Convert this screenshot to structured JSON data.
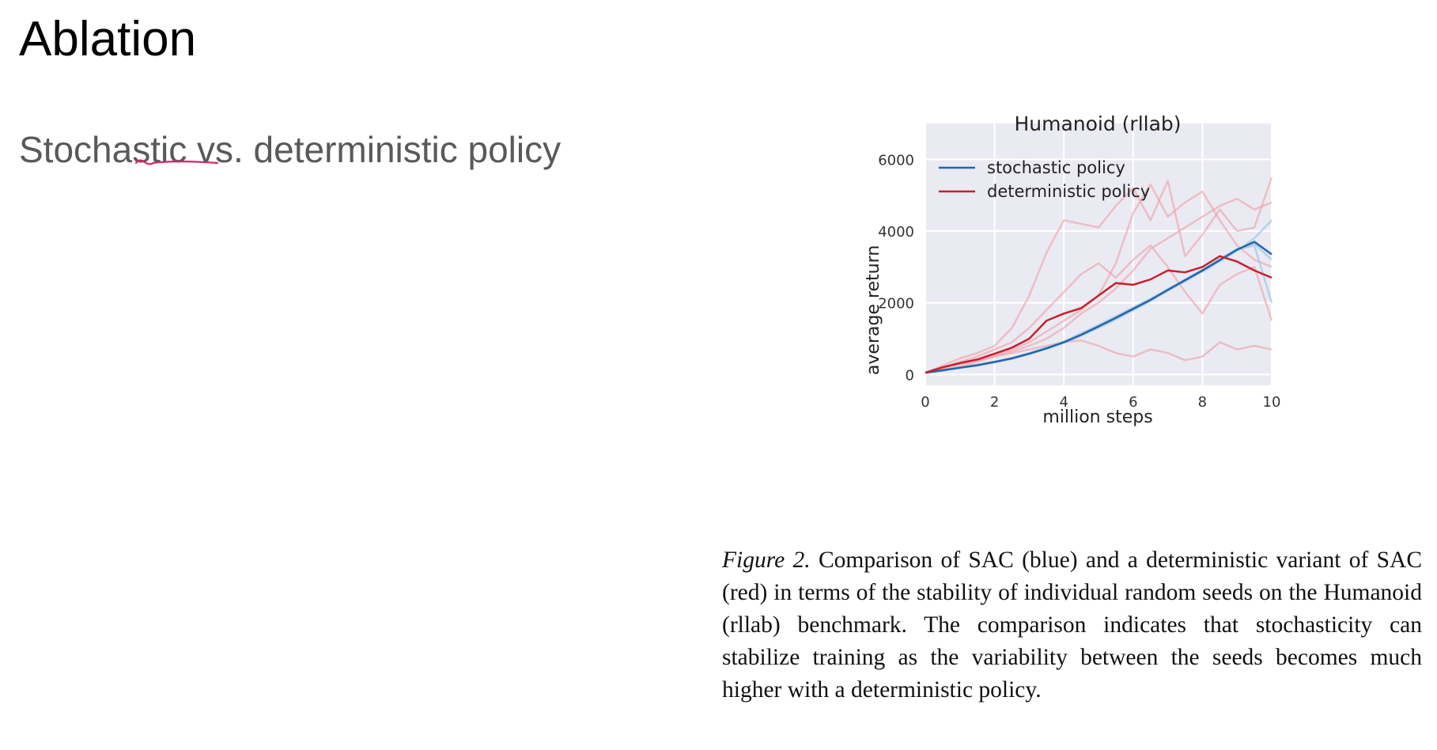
{
  "slide": {
    "title": "Ablation",
    "subtitle": "Stochastic vs. deterministic policy"
  },
  "caption": {
    "label": "Figure 2.",
    "text": "Comparison of SAC (blue) and a deterministic variant of SAC (red) in terms of the stability of individual random seeds on the Humanoid (rllab) benchmark. The comparison indicates that stochasticity can stabilize training as the variability between the seeds becomes much higher with a deterministic policy."
  },
  "colors": {
    "stochastic": "#2166ac",
    "deterministic": "#c9202c",
    "deterministic_seed": "#ef9ea6",
    "stochastic_seed": "#9ec5e8",
    "plot_bg": "#eaeaf2",
    "underline": "#e0206a"
  },
  "chart_data": {
    "type": "line",
    "title": "Humanoid (rllab)",
    "xlabel": "million steps",
    "ylabel": "average return",
    "xlim": [
      0,
      10
    ],
    "ylim": [
      -300,
      7000
    ],
    "xticks": [
      0,
      2,
      4,
      6,
      8,
      10
    ],
    "yticks": [
      0,
      2000,
      4000,
      6000
    ],
    "grid": true,
    "legend_position": "top-left",
    "x": [
      0,
      0.5,
      1,
      1.5,
      2,
      2.5,
      3,
      3.5,
      4,
      4.5,
      5,
      5.5,
      6,
      6.5,
      7,
      7.5,
      8,
      8.5,
      9,
      9.5,
      10
    ],
    "series": [
      {
        "name": "stochastic policy",
        "color": "#2166ac",
        "values": [
          50,
          120,
          190,
          260,
          350,
          450,
          580,
          730,
          900,
          1110,
          1340,
          1580,
          1830,
          2080,
          2360,
          2630,
          2900,
          3190,
          3480,
          3700,
          3350
        ]
      },
      {
        "name": "deterministic policy",
        "color": "#c9202c",
        "values": [
          50,
          200,
          320,
          420,
          580,
          750,
          1000,
          1500,
          1700,
          1850,
          2200,
          2550,
          2500,
          2650,
          2900,
          2850,
          3000,
          3300,
          3150,
          2900,
          2700
        ]
      }
    ],
    "seed_series": {
      "deterministic": [
        [
          50,
          250,
          450,
          600,
          800,
          1300,
          2200,
          3400,
          4300,
          4200,
          4100,
          4700,
          5200,
          4300,
          5400,
          3300,
          3900,
          4600,
          4000,
          4100,
          5500
        ],
        [
          50,
          150,
          280,
          400,
          550,
          700,
          900,
          1200,
          1500,
          1800,
          2200,
          3100,
          4500,
          5300,
          4400,
          4800,
          5100,
          4300,
          3600,
          3200,
          3000
        ],
        [
          50,
          200,
          300,
          400,
          500,
          600,
          700,
          800,
          900,
          950,
          800,
          600,
          500,
          700,
          600,
          400,
          500,
          900,
          700,
          800,
          700
        ],
        [
          50,
          180,
          350,
          500,
          700,
          900,
          1300,
          1800,
          2300,
          2800,
          3100,
          2700,
          3200,
          3600,
          3000,
          2300,
          1700,
          2500,
          2800,
          3000,
          1500
        ],
        [
          50,
          100,
          220,
          350,
          500,
          650,
          800,
          1000,
          1300,
          1700,
          2000,
          2400,
          2900,
          3500,
          3800,
          4100,
          4400,
          4700,
          4900,
          4600,
          4800
        ]
      ],
      "stochastic": [
        [
          50,
          110,
          180,
          250,
          340,
          440,
          570,
          720,
          880,
          1080,
          1300,
          1540,
          1790,
          2050,
          2330,
          2600,
          2870,
          3150,
          3450,
          3800,
          4300
        ],
        [
          50,
          130,
          200,
          270,
          360,
          460,
          600,
          750,
          920,
          1150,
          1380,
          1620,
          1870,
          2110,
          2380,
          2650,
          2920,
          3220,
          3500,
          3650,
          3200
        ],
        [
          50,
          120,
          190,
          260,
          350,
          450,
          580,
          730,
          900,
          1100,
          1330,
          1570,
          1820,
          2070,
          2360,
          2620,
          2910,
          3200,
          3480,
          3600,
          2000
        ]
      ]
    }
  }
}
